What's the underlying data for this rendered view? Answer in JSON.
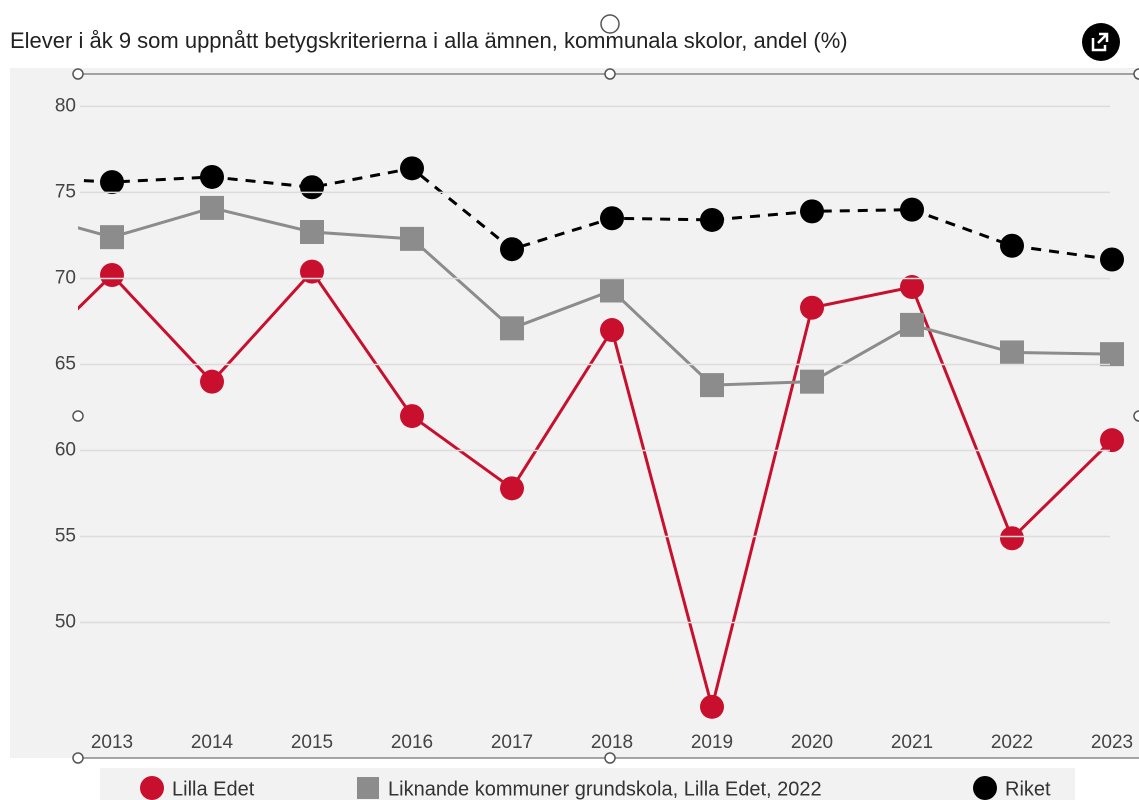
{
  "chart_data": {
    "type": "line",
    "title": "Elever i åk 9 som uppnått betygskriterierna i alla ämnen, kommunala skolor, andel (%)",
    "categories": [
      null,
      "2013",
      "2014",
      "2015",
      "2016",
      "2017",
      "2018",
      "2019",
      "2020",
      "2021",
      "2022",
      "2023"
    ],
    "series": [
      {
        "name": "Lilla Edet",
        "color": "#c8102e",
        "marker": "circle",
        "dash": false,
        "values": [
          64.5,
          70.2,
          64.0,
          70.4,
          62.0,
          57.8,
          67.0,
          45.1,
          68.3,
          69.5,
          54.9,
          60.6
        ]
      },
      {
        "name": "Liknande kommuner grundskola, Lilla Edet, 2022",
        "color": "#8c8c8c",
        "marker": "square",
        "dash": false,
        "values": [
          74.0,
          72.4,
          74.1,
          72.7,
          72.3,
          67.1,
          69.3,
          63.8,
          64.0,
          67.3,
          65.7,
          65.6
        ]
      },
      {
        "name": "Riket",
        "color": "#000000",
        "marker": "circle",
        "dash": true,
        "values": [
          75.9,
          75.6,
          75.9,
          75.3,
          76.4,
          71.7,
          73.5,
          73.4,
          73.9,
          74.0,
          71.9,
          71.1
        ]
      }
    ],
    "ylim": [
      42.3,
      82.0
    ],
    "yticks": [
      50,
      55,
      60,
      65,
      70,
      75,
      80
    ],
    "grid": true
  }
}
